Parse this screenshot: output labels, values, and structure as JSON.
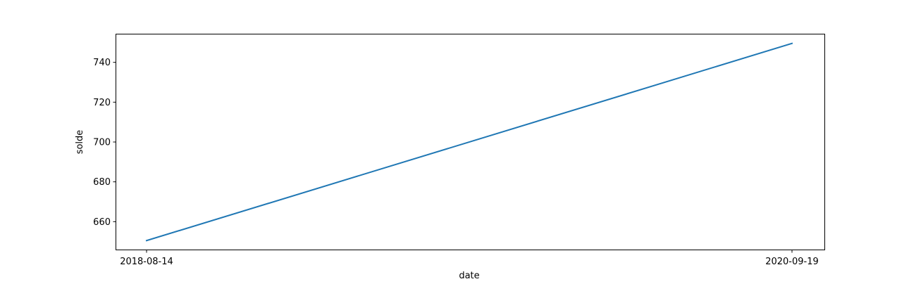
{
  "chart_data": {
    "type": "line",
    "title": "",
    "xlabel": "date",
    "ylabel": "solde",
    "x": [
      "2018-08-14",
      "2020-09-19"
    ],
    "x_ticks": [
      "2018-08-14",
      "2020-09-19"
    ],
    "y_ticks": [
      660,
      680,
      700,
      720,
      740
    ],
    "ylim": [
      646,
      754
    ],
    "series": [
      {
        "values": [
          650.5,
          749.5
        ]
      }
    ],
    "grid": false,
    "legend": "none",
    "colors": {
      "line": "#1f77b4",
      "axes": "#000000"
    }
  }
}
